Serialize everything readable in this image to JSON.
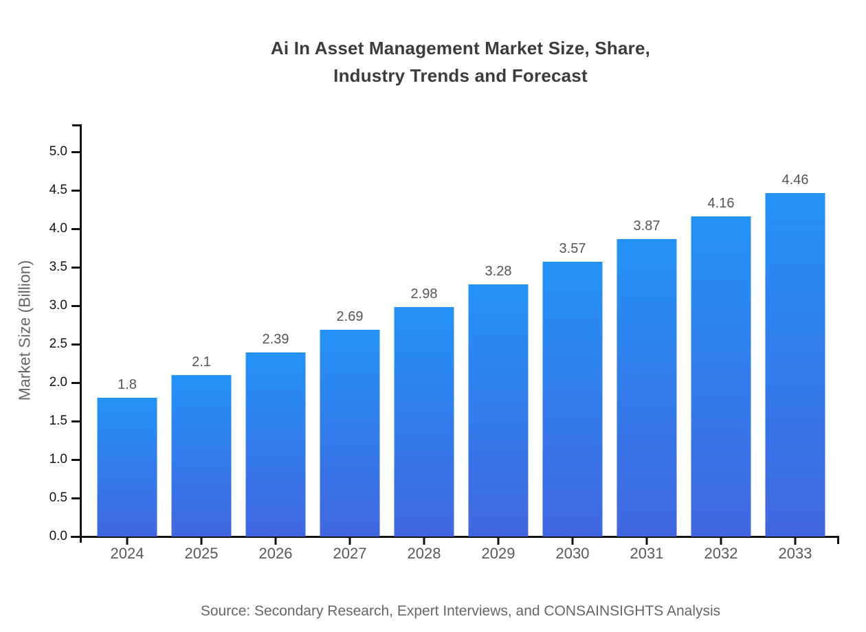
{
  "title": {
    "line1": "Ai In Asset Management Market Size, Share,",
    "line2": "Industry Trends and Forecast"
  },
  "source": "Source: Secondary Research, Expert Interviews, and CONSAINSIGHTS Analysis",
  "chart_data": {
    "type": "bar",
    "title": "Ai In Asset Management Market Size, Share, Industry Trends and Forecast",
    "xlabel": "",
    "ylabel": "Market Size (Billion)",
    "categories": [
      "2024",
      "2025",
      "2026",
      "2027",
      "2028",
      "2029",
      "2030",
      "2031",
      "2032",
      "2033"
    ],
    "values": [
      1.8,
      2.1,
      2.39,
      2.69,
      2.98,
      3.28,
      3.57,
      3.87,
      4.16,
      4.46
    ],
    "value_labels": [
      "1.8",
      "2.1",
      "2.39",
      "2.69",
      "2.98",
      "3.28",
      "3.57",
      "3.87",
      "4.16",
      "4.46"
    ],
    "ylim": [
      0.0,
      5.0
    ],
    "ytick_labels": [
      "0.0",
      "0.5",
      "1.0",
      "1.5",
      "2.0",
      "2.5",
      "3.0",
      "3.5",
      "4.0",
      "4.5",
      "5.0"
    ],
    "grid": false,
    "legend": false,
    "bar_gradient_top": "#2492f5",
    "bar_gradient_bottom": "#4166e0"
  },
  "colors": {
    "background": "#ffffff",
    "title_text": "#3c3c3c",
    "axis": "#111111",
    "ytick_text": "#141414",
    "xtick_text": "#595959",
    "value_label_text": "#555555",
    "axis_title_text": "#666666",
    "source_text": "#666666"
  }
}
